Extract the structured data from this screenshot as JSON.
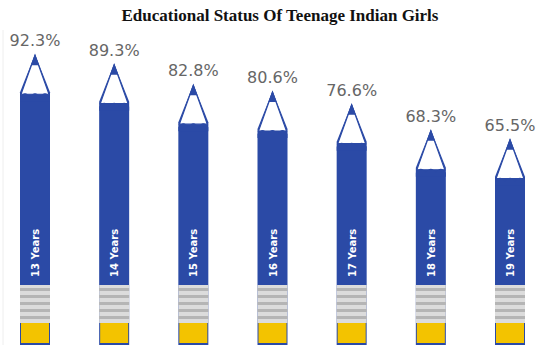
{
  "chart_data": {
    "type": "bar",
    "title": "Educational Status Of Teenage Indian Girls",
    "categories": [
      "13 Years",
      "14 Years",
      "15 Years",
      "16 Years",
      "17 Years",
      "18 Years",
      "19 Years"
    ],
    "values": [
      92.3,
      89.3,
      82.8,
      80.6,
      76.6,
      68.3,
      65.5
    ],
    "value_labels": [
      "92.3%",
      "89.3%",
      "82.8%",
      "80.6%",
      "76.6%",
      "68.3%",
      "65.5%"
    ],
    "color": "#2b4aa6",
    "ylim": [
      0,
      100
    ],
    "data_labels": true,
    "tick_labels": false,
    "grid": false
  }
}
